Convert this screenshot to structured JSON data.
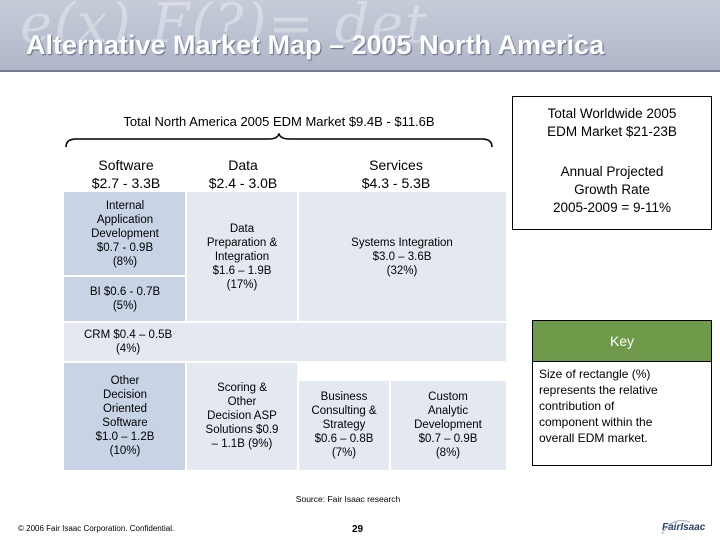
{
  "header": {
    "title": "Alternative Market Map – 2005 North America",
    "background_text": "e(x) F(?)= det"
  },
  "market": {
    "total_label": "Total North America 2005 EDM Market $9.4B - $11.6B",
    "columns": [
      {
        "name": "Software",
        "range": "$2.7 - 3.3B"
      },
      {
        "name": "Data",
        "range": "$2.4 - 3.0B"
      },
      {
        "name": "Services",
        "range": "$4.3 - 5.3B"
      }
    ]
  },
  "blocks": {
    "internal_app": [
      "Internal",
      "Application",
      "Development",
      "$0.7 - 0.9B",
      "(8%)"
    ],
    "bi": [
      "BI $0.6 - 0.7B",
      "(5%)"
    ],
    "crm": [
      "CRM $0.4 – 0.5B",
      "(4%)"
    ],
    "other_software": [
      "Other",
      "Decision",
      "Oriented",
      "Software",
      "$1.0 – 1.2B",
      "(10%)"
    ],
    "data_prep": [
      "Data",
      "Preparation &",
      "Integration",
      "$1.6 – 1.9B",
      "(17%)"
    ],
    "scoring": [
      "Scoring &",
      "Other",
      "Decision ASP",
      "Solutions $0.9",
      "– 1.1B (9%)"
    ],
    "systems_integration": [
      "Systems Integration",
      "$3.0 – 3.6B",
      "(32%)"
    ],
    "business_consulting": [
      "Business",
      "Consulting &",
      "Strategy",
      "$0.6 – 0.8B",
      "(7%)"
    ],
    "custom_analytic": [
      "Custom",
      "Analytic",
      "Development",
      "$0.7 – 0.9B",
      "(8%)"
    ]
  },
  "sidebar": {
    "worldwide": [
      "Total Worldwide 2005",
      "EDM Market $21-23B"
    ],
    "growth": [
      "Annual Projected",
      "Growth Rate",
      "2005-2009 = 9-11%"
    ],
    "key_title": "Key",
    "key_text": [
      "Size of rectangle (%)",
      "represents the relative",
      "contribution of",
      "component within the",
      "overall EDM market."
    ]
  },
  "footer": {
    "source": "Source: Fair Isaac research",
    "copyright": "© 2006 Fair Isaac Corporation. Confidential.",
    "page_number": "29",
    "logo_text": "FairIsaac"
  },
  "colors": {
    "block_blue": "#c8d4e6",
    "block_light": "#e4e9f1",
    "key_green": "#6e9a4a",
    "header_bg": "#b4bccc"
  }
}
